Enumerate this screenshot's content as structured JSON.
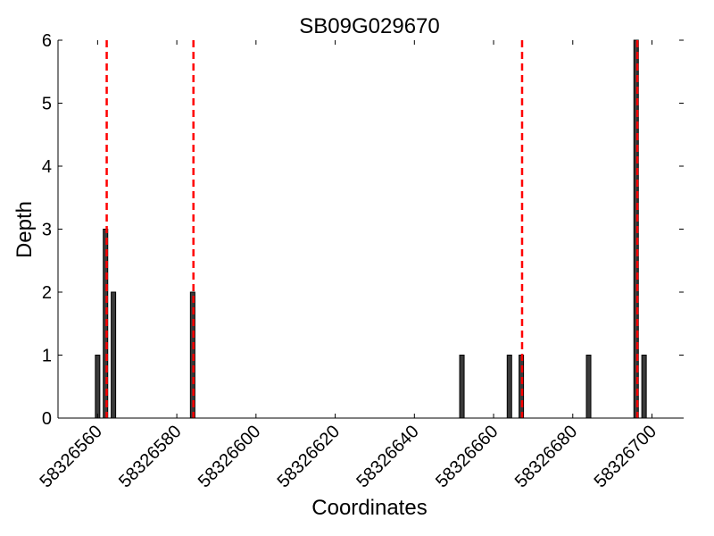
{
  "chart_data": {
    "type": "bar",
    "title": "SB09G029670",
    "xlabel": "Coordinates",
    "ylabel": "Depth",
    "xlim": [
      58326550,
      58326708
    ],
    "ylim": [
      0,
      6
    ],
    "xticks": [
      58326560,
      58326580,
      58326600,
      58326620,
      58326640,
      58326660,
      58326680,
      58326700
    ],
    "yticks": [
      0,
      1,
      2,
      3,
      4,
      5,
      6
    ],
    "grid": false,
    "bars": [
      {
        "x": 58326560,
        "value": 1
      },
      {
        "x": 58326562,
        "value": 3
      },
      {
        "x": 58326564,
        "value": 2
      },
      {
        "x": 58326584,
        "value": 2
      },
      {
        "x": 58326652,
        "value": 1
      },
      {
        "x": 58326664,
        "value": 1
      },
      {
        "x": 58326667,
        "value": 1
      },
      {
        "x": 58326684,
        "value": 1
      },
      {
        "x": 58326696,
        "value": 6
      },
      {
        "x": 58326698,
        "value": 1
      }
    ],
    "vlines": [
      58326562.3,
      58326584.2,
      58326667.2,
      58326696.3
    ],
    "colors": {
      "bar_fill": "#3a3a3a",
      "bar_edge": "#000000",
      "vline": "#ff0000"
    }
  }
}
